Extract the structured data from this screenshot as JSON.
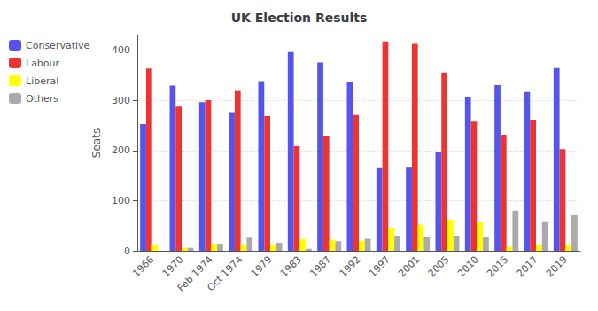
{
  "chart_data": {
    "type": "bar",
    "title": "UK Election Results",
    "ylabel": "Seats",
    "categories": [
      "1966",
      "1970",
      "Feb 1974",
      "Oct 1974",
      "1979",
      "1983",
      "1987",
      "1992",
      "1997",
      "2001",
      "2005",
      "2010",
      "2015",
      "2017",
      "2019"
    ],
    "series": [
      {
        "name": "Conservative",
        "color": "#5555ee",
        "values": [
          253,
          330,
          297,
          277,
          339,
          397,
          376,
          336,
          165,
          166,
          198,
          306,
          331,
          317,
          365
        ]
      },
      {
        "name": "Labour",
        "color": "#ee3333",
        "values": [
          364,
          288,
          301,
          319,
          269,
          209,
          229,
          271,
          418,
          413,
          356,
          258,
          232,
          262,
          203
        ]
      },
      {
        "name": "Liberal",
        "color": "#ffff00",
        "values": [
          12,
          6,
          14,
          13,
          11,
          23,
          22,
          20,
          46,
          52,
          62,
          57,
          8,
          12,
          11
        ]
      },
      {
        "name": "Others",
        "color": "#aaaaaa",
        "values": [
          0,
          6,
          14,
          26,
          16,
          4,
          19,
          24,
          30,
          28,
          30,
          28,
          80,
          59,
          71
        ]
      }
    ],
    "ylim": [
      0,
      430
    ],
    "yticks": [
      0,
      100,
      200,
      300,
      400
    ],
    "grid": true,
    "legend": "upper left"
  }
}
